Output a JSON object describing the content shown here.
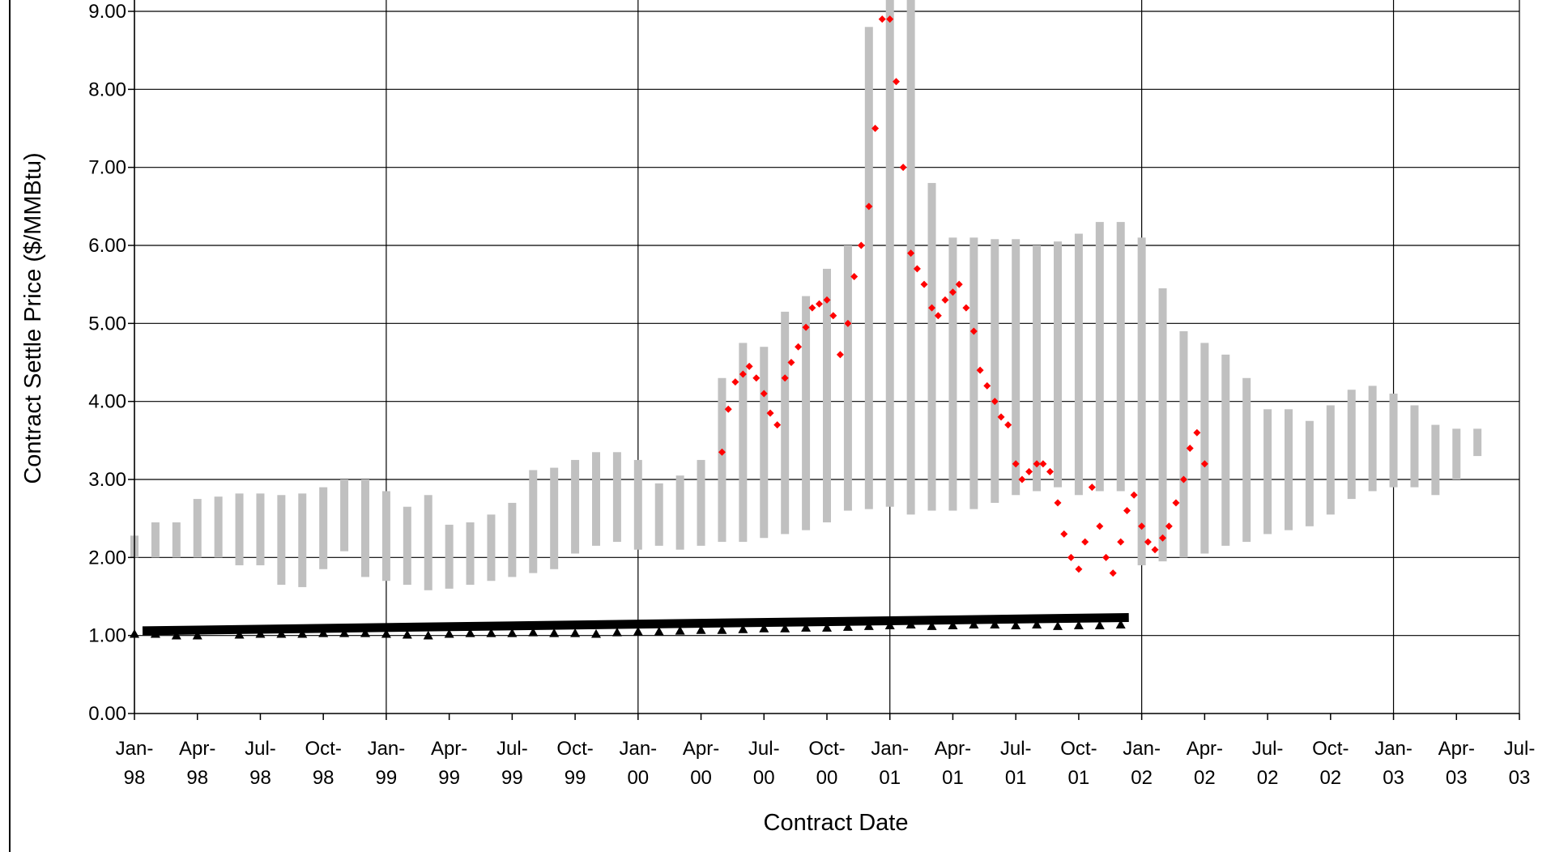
{
  "chart_data": {
    "type": "scatter",
    "title": "",
    "xlabel": "Contract Date",
    "ylabel": "Contract Settle Price ($/MMBtu)",
    "ylim": [
      0,
      9
    ],
    "xlim": [
      "1998-01",
      "2003-07"
    ],
    "y_ticks": [
      "0.00",
      "1.00",
      "2.00",
      "3.00",
      "4.00",
      "5.00",
      "6.00",
      "7.00",
      "8.00",
      "9.00"
    ],
    "x_ticks": [
      {
        "month": "Jan-",
        "year": "98"
      },
      {
        "month": "Apr-",
        "year": "98"
      },
      {
        "month": "Jul-",
        "year": "98"
      },
      {
        "month": "Oct-",
        "year": "98"
      },
      {
        "month": "Jan-",
        "year": "99"
      },
      {
        "month": "Apr-",
        "year": "99"
      },
      {
        "month": "Jul-",
        "year": "99"
      },
      {
        "month": "Oct-",
        "year": "99"
      },
      {
        "month": "Jan-",
        "year": "00"
      },
      {
        "month": "Apr-",
        "year": "00"
      },
      {
        "month": "Jul-",
        "year": "00"
      },
      {
        "month": "Oct-",
        "year": "00"
      },
      {
        "month": "Jan-",
        "year": "01"
      },
      {
        "month": "Apr-",
        "year": "01"
      },
      {
        "month": "Jul-",
        "year": "01"
      },
      {
        "month": "Oct-",
        "year": "01"
      },
      {
        "month": "Jan-",
        "year": "02"
      },
      {
        "month": "Apr-",
        "year": "02"
      },
      {
        "month": "Jul-",
        "year": "02"
      },
      {
        "month": "Oct-",
        "year": "02"
      },
      {
        "month": "Jan-",
        "year": "03"
      },
      {
        "month": "Apr-",
        "year": "03"
      },
      {
        "month": "Jul-",
        "year": "03"
      }
    ],
    "grid": true,
    "legend": "none",
    "colors": {
      "range_bars": "#c0c0c0",
      "settle_points": "#ff0000",
      "triangles": "#000000",
      "trend_line": "#000000",
      "grid": "#000000"
    },
    "series": [
      {
        "style": "range-bar",
        "x": [
          "1998-01",
          "1998-02",
          "1998-03",
          "1998-04",
          "1998-05",
          "1998-06",
          "1998-07",
          "1998-08",
          "1998-09",
          "1998-10",
          "1998-11",
          "1998-12",
          "1999-01",
          "1999-02",
          "1999-03",
          "1999-04",
          "1999-05",
          "1999-06",
          "1999-07",
          "1999-08",
          "1999-09",
          "1999-10",
          "1999-11",
          "1999-12",
          "2000-01",
          "2000-02",
          "2000-03",
          "2000-04",
          "2000-05",
          "2000-06",
          "2000-07",
          "2000-08",
          "2000-09",
          "2000-10",
          "2000-11",
          "2000-12",
          "2001-01",
          "2001-02",
          "2001-03",
          "2001-04",
          "2001-05",
          "2001-06",
          "2001-07",
          "2001-08",
          "2001-09",
          "2001-10",
          "2001-11",
          "2001-12",
          "2002-01",
          "2002-02",
          "2002-03",
          "2002-04",
          "2002-05",
          "2002-06",
          "2002-07",
          "2002-08",
          "2002-09",
          "2002-10",
          "2002-11",
          "2002-12",
          "2003-01",
          "2003-02",
          "2003-03",
          "2003-04",
          "2003-05"
        ],
        "low": [
          2.0,
          2.0,
          2.0,
          2.0,
          2.0,
          1.9,
          1.9,
          1.65,
          1.62,
          1.85,
          2.08,
          1.75,
          1.7,
          1.65,
          1.58,
          1.6,
          1.65,
          1.7,
          1.75,
          1.8,
          1.85,
          2.05,
          2.15,
          2.2,
          2.1,
          2.15,
          2.1,
          2.15,
          2.2,
          2.2,
          2.25,
          2.3,
          2.35,
          2.45,
          2.6,
          2.62,
          2.65,
          2.55,
          2.6,
          2.6,
          2.62,
          2.7,
          2.8,
          2.85,
          2.9,
          2.8,
          2.85,
          2.85,
          1.9,
          1.95,
          2.0,
          2.05,
          2.15,
          2.2,
          2.3,
          2.35,
          2.4,
          2.55,
          2.75,
          2.85,
          2.9,
          2.9,
          2.8,
          3.0,
          3.3
        ],
        "high": [
          2.28,
          2.45,
          2.45,
          2.75,
          2.78,
          2.82,
          2.82,
          2.8,
          2.82,
          2.9,
          3.0,
          3.0,
          2.85,
          2.65,
          2.8,
          2.42,
          2.45,
          2.55,
          2.7,
          3.12,
          3.15,
          3.25,
          3.35,
          3.35,
          3.25,
          2.95,
          3.05,
          3.25,
          4.3,
          4.75,
          4.7,
          5.15,
          5.35,
          5.7,
          6.0,
          8.8,
          9.2,
          9.3,
          6.8,
          6.1,
          6.1,
          6.08,
          6.08,
          6.0,
          6.05,
          6.15,
          6.3,
          6.3,
          6.1,
          5.45,
          4.9,
          4.75,
          4.6,
          4.3,
          3.9,
          3.9,
          3.75,
          3.95,
          4.15,
          4.2,
          4.1,
          3.95,
          3.7,
          3.65,
          3.65
        ]
      },
      {
        "style": "scatter",
        "marker": "diamond",
        "x": [
          "2000-05-01",
          "2000-05-10",
          "2000-05-20",
          "2000-06-01",
          "2000-06-10",
          "2000-06-20",
          "2000-07-01",
          "2000-07-10",
          "2000-07-20",
          "2000-08-01",
          "2000-08-10",
          "2000-08-20",
          "2000-09-01",
          "2000-09-10",
          "2000-09-20",
          "2000-10-01",
          "2000-10-10",
          "2000-10-20",
          "2000-11-01",
          "2000-11-10",
          "2000-11-20",
          "2000-12-01",
          "2000-12-10",
          "2000-12-20",
          "2001-01-01",
          "2001-01-10",
          "2001-01-20",
          "2001-02-01",
          "2001-02-10",
          "2001-02-20",
          "2001-03-01",
          "2001-03-10",
          "2001-03-20",
          "2001-04-01",
          "2001-04-10",
          "2001-04-20",
          "2001-05-01",
          "2001-05-10",
          "2001-05-20",
          "2001-06-01",
          "2001-06-10",
          "2001-06-20",
          "2001-07-01",
          "2001-07-10",
          "2001-07-20",
          "2001-08-01",
          "2001-08-10",
          "2001-08-20",
          "2001-09-01",
          "2001-09-10",
          "2001-09-20",
          "2001-10-01",
          "2001-10-10",
          "2001-10-20",
          "2001-11-01",
          "2001-11-10",
          "2001-11-20",
          "2001-12-01",
          "2001-12-10",
          "2001-12-20",
          "2002-01-01",
          "2002-01-10",
          "2002-01-20",
          "2002-02-01",
          "2002-02-10",
          "2002-02-20",
          "2002-03-01",
          "2002-03-10",
          "2002-03-20",
          "2002-04-01"
        ],
        "y": [
          3.35,
          3.9,
          4.25,
          4.35,
          4.45,
          4.3,
          4.1,
          3.85,
          3.7,
          4.3,
          4.5,
          4.7,
          4.95,
          5.2,
          5.25,
          5.3,
          5.1,
          4.6,
          5.0,
          5.6,
          6.0,
          6.5,
          7.5,
          8.9,
          8.9,
          8.1,
          7.0,
          5.9,
          5.7,
          5.5,
          5.2,
          5.1,
          5.3,
          5.4,
          5.5,
          5.2,
          4.9,
          4.4,
          4.2,
          4.0,
          3.8,
          3.7,
          3.2,
          3.0,
          3.1,
          3.2,
          3.2,
          3.1,
          2.7,
          2.3,
          2.0,
          1.85,
          2.2,
          2.9,
          2.4,
          2.0,
          1.8,
          2.2,
          2.6,
          2.8,
          2.4,
          2.2,
          2.1,
          2.25,
          2.4,
          2.7,
          3.0,
          3.4,
          3.6,
          3.2
        ]
      },
      {
        "style": "scatter",
        "marker": "triangle",
        "x": [
          "1998-01",
          "1998-02",
          "1998-03",
          "1998-04",
          "1998-06",
          "1998-07",
          "1998-08",
          "1998-09",
          "1998-10",
          "1998-11",
          "1998-12",
          "1999-01",
          "1999-02",
          "1999-03",
          "1999-04",
          "1999-05",
          "1999-06",
          "1999-07",
          "1999-08",
          "1999-09",
          "1999-10",
          "1999-11",
          "1999-12",
          "2000-01",
          "2000-02",
          "2000-03",
          "2000-04",
          "2000-05",
          "2000-06",
          "2000-07",
          "2000-08",
          "2000-09",
          "2000-10",
          "2000-11",
          "2000-12",
          "2001-01",
          "2001-02",
          "2001-03",
          "2001-04",
          "2001-05",
          "2001-06",
          "2001-07",
          "2001-08",
          "2001-09",
          "2001-10",
          "2001-11",
          "2001-12"
        ],
        "y": [
          1.02,
          1.02,
          1.0,
          1.0,
          1.01,
          1.02,
          1.02,
          1.02,
          1.03,
          1.03,
          1.03,
          1.02,
          1.01,
          1.0,
          1.02,
          1.03,
          1.03,
          1.03,
          1.04,
          1.03,
          1.03,
          1.02,
          1.04,
          1.05,
          1.05,
          1.06,
          1.07,
          1.07,
          1.08,
          1.09,
          1.09,
          1.1,
          1.1,
          1.11,
          1.12,
          1.13,
          1.14,
          1.12,
          1.13,
          1.14,
          1.14,
          1.13,
          1.14,
          1.12,
          1.13,
          1.13,
          1.14
        ]
      },
      {
        "style": "line",
        "x": [
          "1998-01",
          "2001-12"
        ],
        "y": [
          1.06,
          1.23
        ]
      }
    ]
  }
}
